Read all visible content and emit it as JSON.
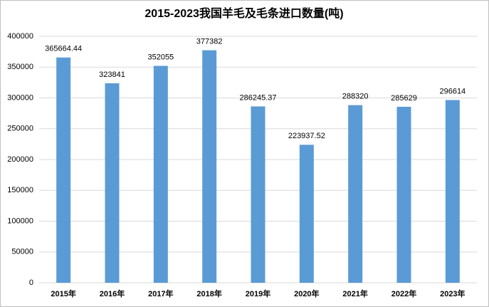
{
  "chart_data": {
    "type": "bar",
    "title": "2015-2023我国羊毛及毛条进口数量(吨)",
    "categories": [
      "2015年",
      "2016年",
      "2017年",
      "2018年",
      "2019年",
      "2020年",
      "2021年",
      "2022年",
      "2023年"
    ],
    "values": [
      365664.44,
      323841,
      352055,
      377382,
      286245.37,
      223937.52,
      288320,
      285629,
      296614
    ],
    "color": "#5b9bd5",
    "ylim": [
      0,
      400000
    ],
    "yticks": [
      0,
      50000,
      100000,
      150000,
      200000,
      250000,
      300000,
      350000,
      400000
    ],
    "grid": true
  }
}
